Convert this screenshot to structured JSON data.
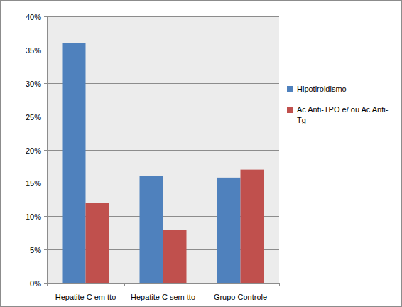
{
  "chart_data": {
    "type": "bar",
    "categories": [
      "Hepatite C em tto",
      "Hepatite C sem tto",
      "Grupo Controle"
    ],
    "series": [
      {
        "name": "Hipotiroidismo",
        "color": "#4f81bd",
        "values": [
          36,
          16.1,
          15.8
        ]
      },
      {
        "name": "Ac Anti-TPO e/ ou Ac Anti-Tg",
        "color": "#c0504d",
        "values": [
          12,
          8,
          17
        ]
      }
    ],
    "ylim": [
      0,
      40
    ],
    "yticks": [
      {
        "value": 0,
        "label": "0%"
      },
      {
        "value": 5,
        "label": "5%"
      },
      {
        "value": 10,
        "label": "10%"
      },
      {
        "value": 15,
        "label": "15%"
      },
      {
        "value": 20,
        "label": "20%"
      },
      {
        "value": 25,
        "label": "25%"
      },
      {
        "value": 30,
        "label": "30%"
      },
      {
        "value": 35,
        "label": "35%"
      },
      {
        "value": 40,
        "label": "40%"
      }
    ],
    "grid": true,
    "legend": "right"
  }
}
